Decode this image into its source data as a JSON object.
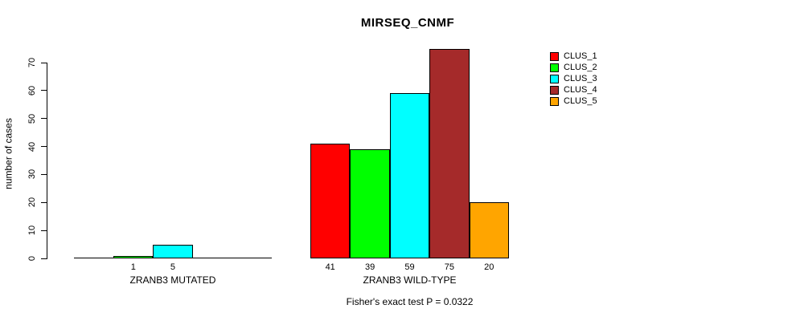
{
  "page": {
    "title": "MIRSEQ_CNMF",
    "y_axis_label": "number of cases",
    "footer_annotation": "Fisher's exact test P = 0.0322"
  },
  "legend": {
    "items": [
      {
        "label": "CLUS_1",
        "color": "#FF0000"
      },
      {
        "label": "CLUS_2",
        "color": "#00FF00"
      },
      {
        "label": "CLUS_3",
        "color": "#00FFFF"
      },
      {
        "label": "CLUS_4",
        "color": "#A52A2A"
      },
      {
        "label": "CLUS_5",
        "color": "#FFA500"
      }
    ]
  },
  "chart_data": {
    "type": "bar",
    "title": "MIRSEQ_CNMF",
    "ylabel": "number of cases",
    "ylim": [
      0,
      70
    ],
    "yticks": [
      0,
      10,
      20,
      30,
      40,
      50,
      60,
      70
    ],
    "grid": false,
    "legend_position": "right",
    "categories": [
      "CLUS_1",
      "CLUS_2",
      "CLUS_3",
      "CLUS_4",
      "CLUS_5"
    ],
    "series_colors": [
      "#FF0000",
      "#00FF00",
      "#00FFFF",
      "#A52A2A",
      "#FFA500"
    ],
    "groups": [
      {
        "label": "ZRANB3 MUTATED",
        "values": [
          0,
          1,
          5,
          0,
          0
        ],
        "bar_labels": [
          "",
          "1",
          "5",
          "",
          ""
        ]
      },
      {
        "label": "ZRANB3 WILD-TYPE",
        "values": [
          41,
          39,
          59,
          75,
          20
        ],
        "bar_labels": [
          "41",
          "39",
          "59",
          "75",
          "20"
        ]
      }
    ],
    "annotation": "Fisher's exact test P = 0.0322"
  }
}
